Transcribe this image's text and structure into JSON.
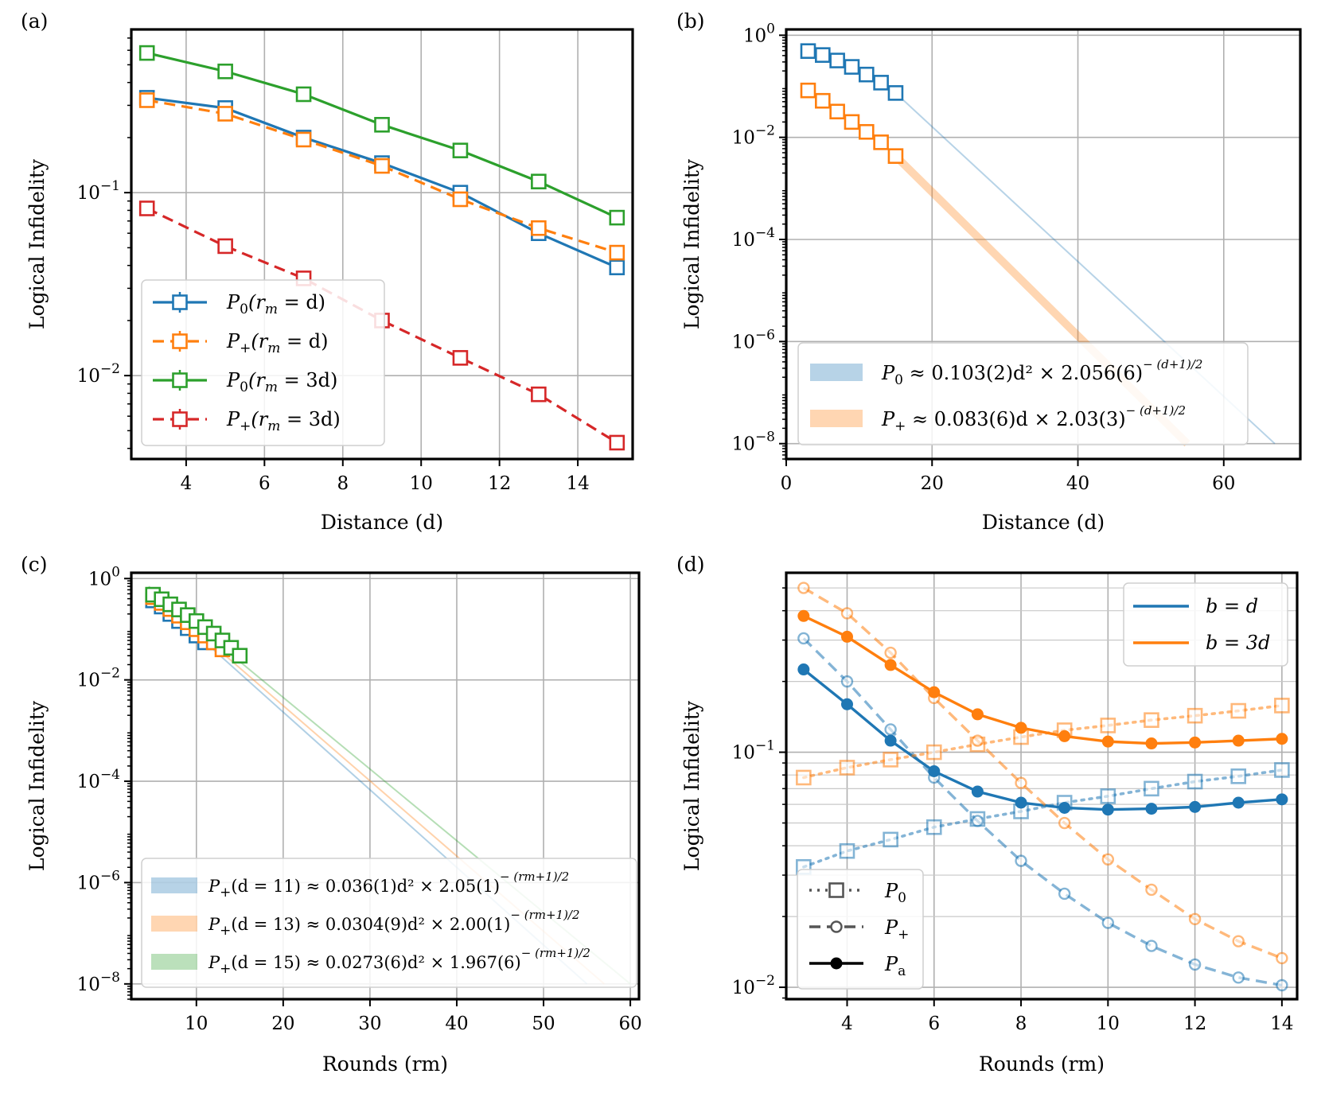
{
  "colors": {
    "blue": "#1f77b4",
    "orange": "#ff7f0e",
    "green": "#2ca02c",
    "red": "#d62728",
    "gray": "#555555"
  },
  "chart_data": [
    {
      "panel": "(a)",
      "type": "line",
      "xlabel": "Distance (d)",
      "ylabel": "Logical Infidelity",
      "yscale": "log",
      "xlim": [
        2.6,
        15.4
      ],
      "ylim": [
        0.0035,
        0.78
      ],
      "xticks": [
        "4",
        "6",
        "8",
        "10",
        "12",
        "14"
      ],
      "yticks": [
        {
          "value": 0.1,
          "base": "10",
          "exp": "−1"
        },
        {
          "value": 0.01,
          "base": "10",
          "exp": "−2"
        }
      ],
      "grid": true,
      "legend_position": "lower-left",
      "x": [
        3,
        5,
        7,
        9,
        11,
        13,
        15
      ],
      "series": [
        {
          "name": "P0(rm = d)",
          "legend": {
            "main": "P",
            "sub": "0",
            "rest": "(r",
            "rsub": "m",
            "end": " = d)"
          },
          "color": "blue",
          "style": "solid",
          "marker": "square",
          "values": [
            0.33,
            0.29,
            0.2,
            0.145,
            0.1,
            0.06,
            0.039
          ]
        },
        {
          "name": "P+(rm = d)",
          "legend": {
            "main": "P",
            "sub": "+",
            "rest": "(r",
            "rsub": "m",
            "end": " = d)"
          },
          "color": "orange",
          "style": "dashed",
          "marker": "square",
          "values": [
            0.32,
            0.27,
            0.195,
            0.14,
            0.092,
            0.064,
            0.047
          ]
        },
        {
          "name": "P0(rm = 3d)",
          "legend": {
            "main": "P",
            "sub": "0",
            "rest": "(r",
            "rsub": "m",
            "end": " = 3d)"
          },
          "color": "green",
          "style": "solid",
          "marker": "square",
          "values": [
            0.58,
            0.46,
            0.345,
            0.235,
            0.17,
            0.115,
            0.073
          ]
        },
        {
          "name": "P+(rm = 3d)",
          "legend": {
            "main": "P",
            "sub": "+",
            "rest": "(r",
            "rsub": "m",
            "end": " = 3d)"
          },
          "color": "red",
          "style": "dashed",
          "marker": "square",
          "values": [
            0.082,
            0.051,
            0.034,
            0.02,
            0.0125,
            0.0079,
            0.0043
          ]
        }
      ]
    },
    {
      "panel": "(b)",
      "type": "line",
      "xlabel": "Distance (d)",
      "ylabel": "Logical Infidelity",
      "yscale": "log",
      "xlim": [
        0,
        70.5
      ],
      "ylim": [
        5e-09,
        1.3
      ],
      "xticks": [
        "0",
        "20",
        "40",
        "60"
      ],
      "yticks": [
        {
          "value": 1,
          "base": "10",
          "exp": "0"
        },
        {
          "value": 0.01,
          "base": "10",
          "exp": "−2"
        },
        {
          "value": 0.0001,
          "base": "10",
          "exp": "−4"
        },
        {
          "value": 1e-06,
          "base": "10",
          "exp": "−6"
        },
        {
          "value": 1e-08,
          "base": "10",
          "exp": "−8"
        }
      ],
      "grid": true,
      "legend_position": "lower-right",
      "x": [
        3,
        5,
        7,
        9,
        11,
        13,
        15
      ],
      "series": [
        {
          "name": "P0",
          "color": "blue",
          "marker": "square",
          "values": [
            0.49,
            0.41,
            0.32,
            0.24,
            0.17,
            0.118,
            0.074
          ]
        },
        {
          "name": "P+",
          "color": "orange",
          "marker": "square",
          "values": [
            0.083,
            0.052,
            0.032,
            0.02,
            0.0128,
            0.008,
            0.0043
          ]
        }
      ],
      "fits": [
        {
          "color": "blue",
          "x_range": [
            15,
            67
          ],
          "y_start": 0.074,
          "y_end": 1e-08,
          "band_width": 2,
          "legend": {
            "main": "P",
            "sub": "0",
            "text": " ≈ 0.103(2)d² × 2.056(6)",
            "sup": "− (d+1)/2"
          }
        },
        {
          "color": "orange",
          "x_range": [
            15,
            55
          ],
          "y_start": 0.0043,
          "y_end": 1e-08,
          "band_width": 10,
          "legend": {
            "main": "P",
            "sub": "+",
            "text": " ≈ 0.083(6)d × 2.03(3)",
            "sup": "− (d+1)/2"
          }
        }
      ]
    },
    {
      "panel": "(c)",
      "type": "line",
      "xlabel": "Rounds (rm)",
      "ylabel": "Logical Infidelity",
      "yscale": "log",
      "xlim": [
        2.5,
        61
      ],
      "ylim": [
        5e-09,
        1.3
      ],
      "xticks": [
        "10",
        "20",
        "30",
        "40",
        "50",
        "60"
      ],
      "yticks": [
        {
          "value": 1,
          "base": "10",
          "exp": "0"
        },
        {
          "value": 0.01,
          "base": "10",
          "exp": "−2"
        },
        {
          "value": 0.0001,
          "base": "10",
          "exp": "−4"
        },
        {
          "value": 1e-06,
          "base": "10",
          "exp": "−6"
        },
        {
          "value": 1e-08,
          "base": "10",
          "exp": "−8"
        }
      ],
      "grid": true,
      "legend_position": "lower-right",
      "series": [
        {
          "name": "d = 11",
          "color": "blue",
          "marker": "square",
          "x": [
            5,
            6,
            7,
            8,
            9,
            10,
            11
          ],
          "values": [
            0.37,
            0.28,
            0.2,
            0.145,
            0.105,
            0.075,
            0.055
          ]
        },
        {
          "name": "d = 13",
          "color": "orange",
          "marker": "square",
          "x": [
            5,
            6,
            7,
            8,
            9,
            10,
            11,
            12,
            13
          ],
          "values": [
            0.43,
            0.33,
            0.25,
            0.185,
            0.137,
            0.1,
            0.075,
            0.055,
            0.04
          ]
        },
        {
          "name": "d = 15",
          "color": "green",
          "marker": "square",
          "x": [
            5,
            6,
            7,
            8,
            9,
            10,
            11,
            12,
            13,
            14,
            15
          ],
          "values": [
            0.48,
            0.39,
            0.31,
            0.245,
            0.19,
            0.145,
            0.11,
            0.082,
            0.06,
            0.043,
            0.03
          ]
        }
      ],
      "fits": [
        {
          "color": "blue",
          "x_range": [
            4.5,
            55
          ],
          "y_start": 0.55,
          "y_end": 1e-08,
          "legend": {
            "main": "P",
            "sub": "+",
            "text": "(d = 11) ≈ 0.036(1)d² × 2.05(1)",
            "sup": "− (rm+1)/2"
          }
        },
        {
          "color": "orange",
          "x_range": [
            4.5,
            57
          ],
          "y_start": 0.62,
          "y_end": 1e-08,
          "legend": {
            "main": "P",
            "sub": "+",
            "text": "(d = 13) ≈ 0.0304(9)d² × 2.00(1)",
            "sup": "− (rm+1)/2"
          }
        },
        {
          "color": "green",
          "x_range": [
            4.5,
            60
          ],
          "y_start": 0.7,
          "y_end": 1e-08,
          "legend": {
            "main": "P",
            "sub": "+",
            "text": "(d = 15) ≈ 0.0273(6)d² × 1.967(6)",
            "sup": "− (rm+1)/2"
          }
        }
      ]
    },
    {
      "panel": "(d)",
      "type": "line",
      "xlabel": "Rounds (rm)",
      "ylabel": "Logical Infidelity",
      "yscale": "log",
      "xlim": [
        2.6,
        14.35
      ],
      "ylim": [
        0.0089,
        0.58
      ],
      "xticks": [
        "4",
        "6",
        "8",
        "10",
        "12",
        "14"
      ],
      "yticks": [
        {
          "value": 0.1,
          "base": "10",
          "exp": "−1"
        },
        {
          "value": 0.01,
          "base": "10",
          "exp": "−2"
        }
      ],
      "grid": true,
      "x": [
        3,
        4,
        5,
        6,
        7,
        8,
        9,
        10,
        11,
        12,
        13,
        14
      ],
      "series": [
        {
          "name": "P0 (b = d)",
          "color": "blue",
          "style": "dotted",
          "marker": "square-open",
          "faded": true,
          "values": [
            0.0325,
            0.038,
            0.0425,
            0.048,
            0.052,
            0.056,
            0.061,
            0.065,
            0.07,
            0.075,
            0.079,
            0.084
          ]
        },
        {
          "name": "P+ (b = d)",
          "color": "blue",
          "style": "dashed",
          "marker": "circle-open",
          "faded": true,
          "values": [
            0.305,
            0.2,
            0.125,
            0.078,
            0.051,
            0.0345,
            0.025,
            0.0188,
            0.015,
            0.0125,
            0.011,
            0.0102
          ]
        },
        {
          "name": "Pa (b = d)",
          "color": "blue",
          "style": "solid",
          "marker": "circle-filled",
          "faded": false,
          "values": [
            0.225,
            0.16,
            0.112,
            0.083,
            0.068,
            0.061,
            0.058,
            0.057,
            0.0575,
            0.0585,
            0.061,
            0.063
          ]
        },
        {
          "name": "P0 (b = 3d)",
          "color": "orange",
          "style": "dotted",
          "marker": "square-open",
          "faded": true,
          "values": [
            0.078,
            0.086,
            0.093,
            0.1,
            0.108,
            0.116,
            0.124,
            0.13,
            0.137,
            0.143,
            0.15,
            0.158
          ]
        },
        {
          "name": "P+ (b = 3d)",
          "color": "orange",
          "style": "dashed",
          "marker": "circle-open",
          "faded": true,
          "values": [
            0.5,
            0.39,
            0.265,
            0.17,
            0.112,
            0.074,
            0.05,
            0.035,
            0.026,
            0.0195,
            0.0157,
            0.0133
          ]
        },
        {
          "name": "Pa (b = 3d)",
          "color": "orange",
          "style": "solid",
          "marker": "circle-filled",
          "faded": false,
          "values": [
            0.38,
            0.31,
            0.235,
            0.18,
            0.145,
            0.127,
            0.117,
            0.111,
            0.109,
            0.11,
            0.112,
            0.114
          ]
        }
      ],
      "legend_color": [
        {
          "label": "b = d",
          "color": "blue"
        },
        {
          "label": "b = 3d",
          "color": "orange"
        }
      ],
      "legend_style": [
        {
          "main": "P",
          "sub": "0",
          "style": "dotted",
          "marker": "square-open"
        },
        {
          "main": "P",
          "sub": "+",
          "style": "dashed",
          "marker": "circle-open"
        },
        {
          "main": "P",
          "sub": "a",
          "style": "solid",
          "marker": "circle-filled"
        }
      ]
    }
  ]
}
